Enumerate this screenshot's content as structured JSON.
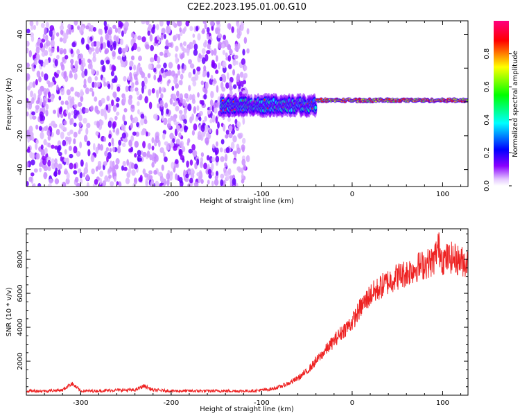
{
  "figure": {
    "title": "C2E2.2023.195.01.00.G10"
  },
  "chart_data": [
    {
      "type": "heatmap",
      "xlabel": "Height of straight line (km)",
      "ylabel": "Frequency (Hz)",
      "xlim": [
        -360,
        128
      ],
      "ylim": [
        -50,
        48
      ],
      "x_ticks": [
        -300,
        -200,
        -100,
        0,
        100
      ],
      "y_ticks": [
        -40,
        -20,
        0,
        20,
        40
      ],
      "colorbar": {
        "label": "Normalized spectral amplitude",
        "range": [
          0,
          1
        ],
        "ticks": [
          0.0,
          0.2,
          0.4,
          0.6,
          0.8
        ],
        "colormap": [
          "#ffffff",
          "#e4c8ff",
          "#8a00ff",
          "#0000ff",
          "#00ffff",
          "#00ff00",
          "#ffff00",
          "#ff0000",
          "#ff0080"
        ]
      },
      "regions": [
        {
          "x_range": [
            -360,
            -115
          ],
          "y_range": [
            -50,
            48
          ],
          "amplitude": 0.1,
          "kind": "scattered noise"
        },
        {
          "x_range": [
            -145,
            -40
          ],
          "center_frequency": -2,
          "spread": 8,
          "amplitude": 0.45
        },
        {
          "x_range": [
            -40,
            128
          ],
          "center_frequency": 1,
          "spread": 2,
          "amplitude": 0.8
        }
      ]
    },
    {
      "type": "line",
      "xlabel": "Height of straight line (km)",
      "ylabel": "SNR (10 * v/v)",
      "xlim": [
        -360,
        128
      ],
      "ylim": [
        0,
        9800
      ],
      "x_ticks": [
        -300,
        -200,
        -100,
        0,
        100
      ],
      "y_ticks": [
        2000,
        4000,
        6000,
        8000
      ],
      "series": [
        {
          "color": "#ee2222",
          "x": [
            -360,
            -340,
            -320,
            -310,
            -300,
            -280,
            -260,
            -240,
            -230,
            -220,
            -200,
            -180,
            -160,
            -140,
            -120,
            -110,
            -100,
            -90,
            -80,
            -70,
            -60,
            -50,
            -40,
            -30,
            -20,
            -10,
            0,
            10,
            20,
            30,
            40,
            50,
            60,
            70,
            80,
            90,
            95,
            100,
            110,
            120,
            128
          ],
          "y": [
            250,
            250,
            300,
            700,
            250,
            250,
            300,
            300,
            550,
            300,
            250,
            250,
            250,
            250,
            250,
            250,
            300,
            350,
            500,
            700,
            1000,
            1400,
            2000,
            2600,
            3200,
            3800,
            4300,
            5200,
            5900,
            6300,
            6700,
            7000,
            7200,
            7500,
            7700,
            7900,
            8800,
            8000,
            8100,
            7900,
            7800
          ]
        }
      ]
    }
  ]
}
